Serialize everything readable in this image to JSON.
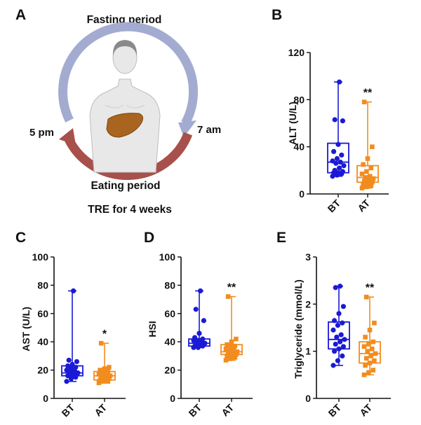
{
  "colors": {
    "bt": "#1a1ad6",
    "at": "#f28c1e",
    "arrow_fasting": "#a3acd0",
    "arrow_eating": "#a8504c",
    "skin": "#e8e8e8",
    "liver": "#a9651f",
    "axis": "#111111"
  },
  "schematic": {
    "panel_label": "A",
    "fasting_label": "Fasting period",
    "eating_label": "Eating period",
    "left_time": "5 pm",
    "right_time": "7 am",
    "footnote": "TRE for 4 weeks",
    "human_icon": "human-torso-with-liver-icon"
  },
  "chart_data": [
    {
      "panel": "B",
      "type": "box",
      "ylabel": "ALT (U/L)",
      "ylim": [
        0,
        120
      ],
      "yticks": [
        0,
        40,
        80,
        120
      ],
      "categories": [
        "BT",
        "AT"
      ],
      "significance": {
        "AT": "**"
      },
      "series": [
        {
          "name": "BT",
          "min": 15,
          "q1": 18,
          "median": 27,
          "q3": 43,
          "max": 95,
          "points": [
            15,
            16,
            17,
            18,
            18,
            19,
            20,
            22,
            24,
            26,
            27,
            28,
            30,
            33,
            36,
            42,
            62,
            63,
            95
          ]
        },
        {
          "name": "AT",
          "min": 5,
          "q1": 10,
          "median": 14,
          "q3": 24,
          "max": 78,
          "points": [
            5,
            6,
            7,
            8,
            9,
            10,
            11,
            12,
            13,
            14,
            15,
            17,
            19,
            22,
            25,
            30,
            40,
            78
          ]
        }
      ]
    },
    {
      "panel": "C",
      "type": "box",
      "ylabel": "AST (U/L)",
      "ylim": [
        0,
        100
      ],
      "yticks": [
        0,
        20,
        40,
        60,
        80,
        100
      ],
      "categories": [
        "BT",
        "AT"
      ],
      "significance": {
        "AT": "*"
      },
      "series": [
        {
          "name": "BT",
          "min": 12,
          "q1": 16,
          "median": 18,
          "q3": 23,
          "max": 76,
          "points": [
            12,
            14,
            15,
            16,
            16,
            17,
            17,
            18,
            18,
            19,
            20,
            20,
            21,
            22,
            23,
            24,
            26,
            27,
            76
          ]
        },
        {
          "name": "AT",
          "min": 11,
          "q1": 13,
          "median": 16,
          "q3": 19,
          "max": 39,
          "points": [
            11,
            12,
            12,
            13,
            13,
            14,
            15,
            15,
            16,
            16,
            17,
            17,
            18,
            19,
            20,
            21,
            22,
            39
          ]
        }
      ]
    },
    {
      "panel": "D",
      "type": "box",
      "ylabel": "HSI",
      "ylim": [
        0,
        100
      ],
      "yticks": [
        0,
        20,
        40,
        60,
        80,
        100
      ],
      "categories": [
        "BT",
        "AT"
      ],
      "significance": {
        "AT": "**"
      },
      "series": [
        {
          "name": "BT",
          "min": 36,
          "q1": 37,
          "median": 39,
          "q3": 42,
          "max": 76,
          "points": [
            36,
            36,
            37,
            37,
            38,
            38,
            38,
            39,
            39,
            40,
            40,
            41,
            41,
            42,
            43,
            46,
            55,
            63,
            76
          ]
        },
        {
          "name": "AT",
          "min": 27,
          "q1": 31,
          "median": 33,
          "q3": 38,
          "max": 72,
          "points": [
            27,
            28,
            29,
            30,
            30,
            31,
            32,
            32,
            33,
            33,
            34,
            35,
            36,
            37,
            38,
            40,
            42,
            72
          ]
        }
      ]
    },
    {
      "panel": "E",
      "type": "box",
      "ylabel": "Triglyceride (mmol/L)",
      "ylim": [
        0,
        3
      ],
      "yticks": [
        0,
        1,
        2,
        3
      ],
      "categories": [
        "BT",
        "AT"
      ],
      "significance": {
        "AT": "**"
      },
      "series": [
        {
          "name": "BT",
          "min": 0.7,
          "q1": 1.05,
          "median": 1.25,
          "q3": 1.62,
          "max": 2.38,
          "points": [
            0.7,
            0.8,
            0.9,
            1.0,
            1.05,
            1.1,
            1.15,
            1.2,
            1.25,
            1.3,
            1.35,
            1.45,
            1.55,
            1.6,
            1.65,
            1.8,
            1.95,
            2.35,
            2.38
          ]
        },
        {
          "name": "AT",
          "min": 0.5,
          "q1": 0.75,
          "median": 0.95,
          "q3": 1.2,
          "max": 2.15,
          "points": [
            0.5,
            0.55,
            0.6,
            0.7,
            0.75,
            0.8,
            0.85,
            0.9,
            0.95,
            1.0,
            1.05,
            1.1,
            1.15,
            1.2,
            1.3,
            1.45,
            1.6,
            2.15
          ]
        }
      ]
    }
  ]
}
